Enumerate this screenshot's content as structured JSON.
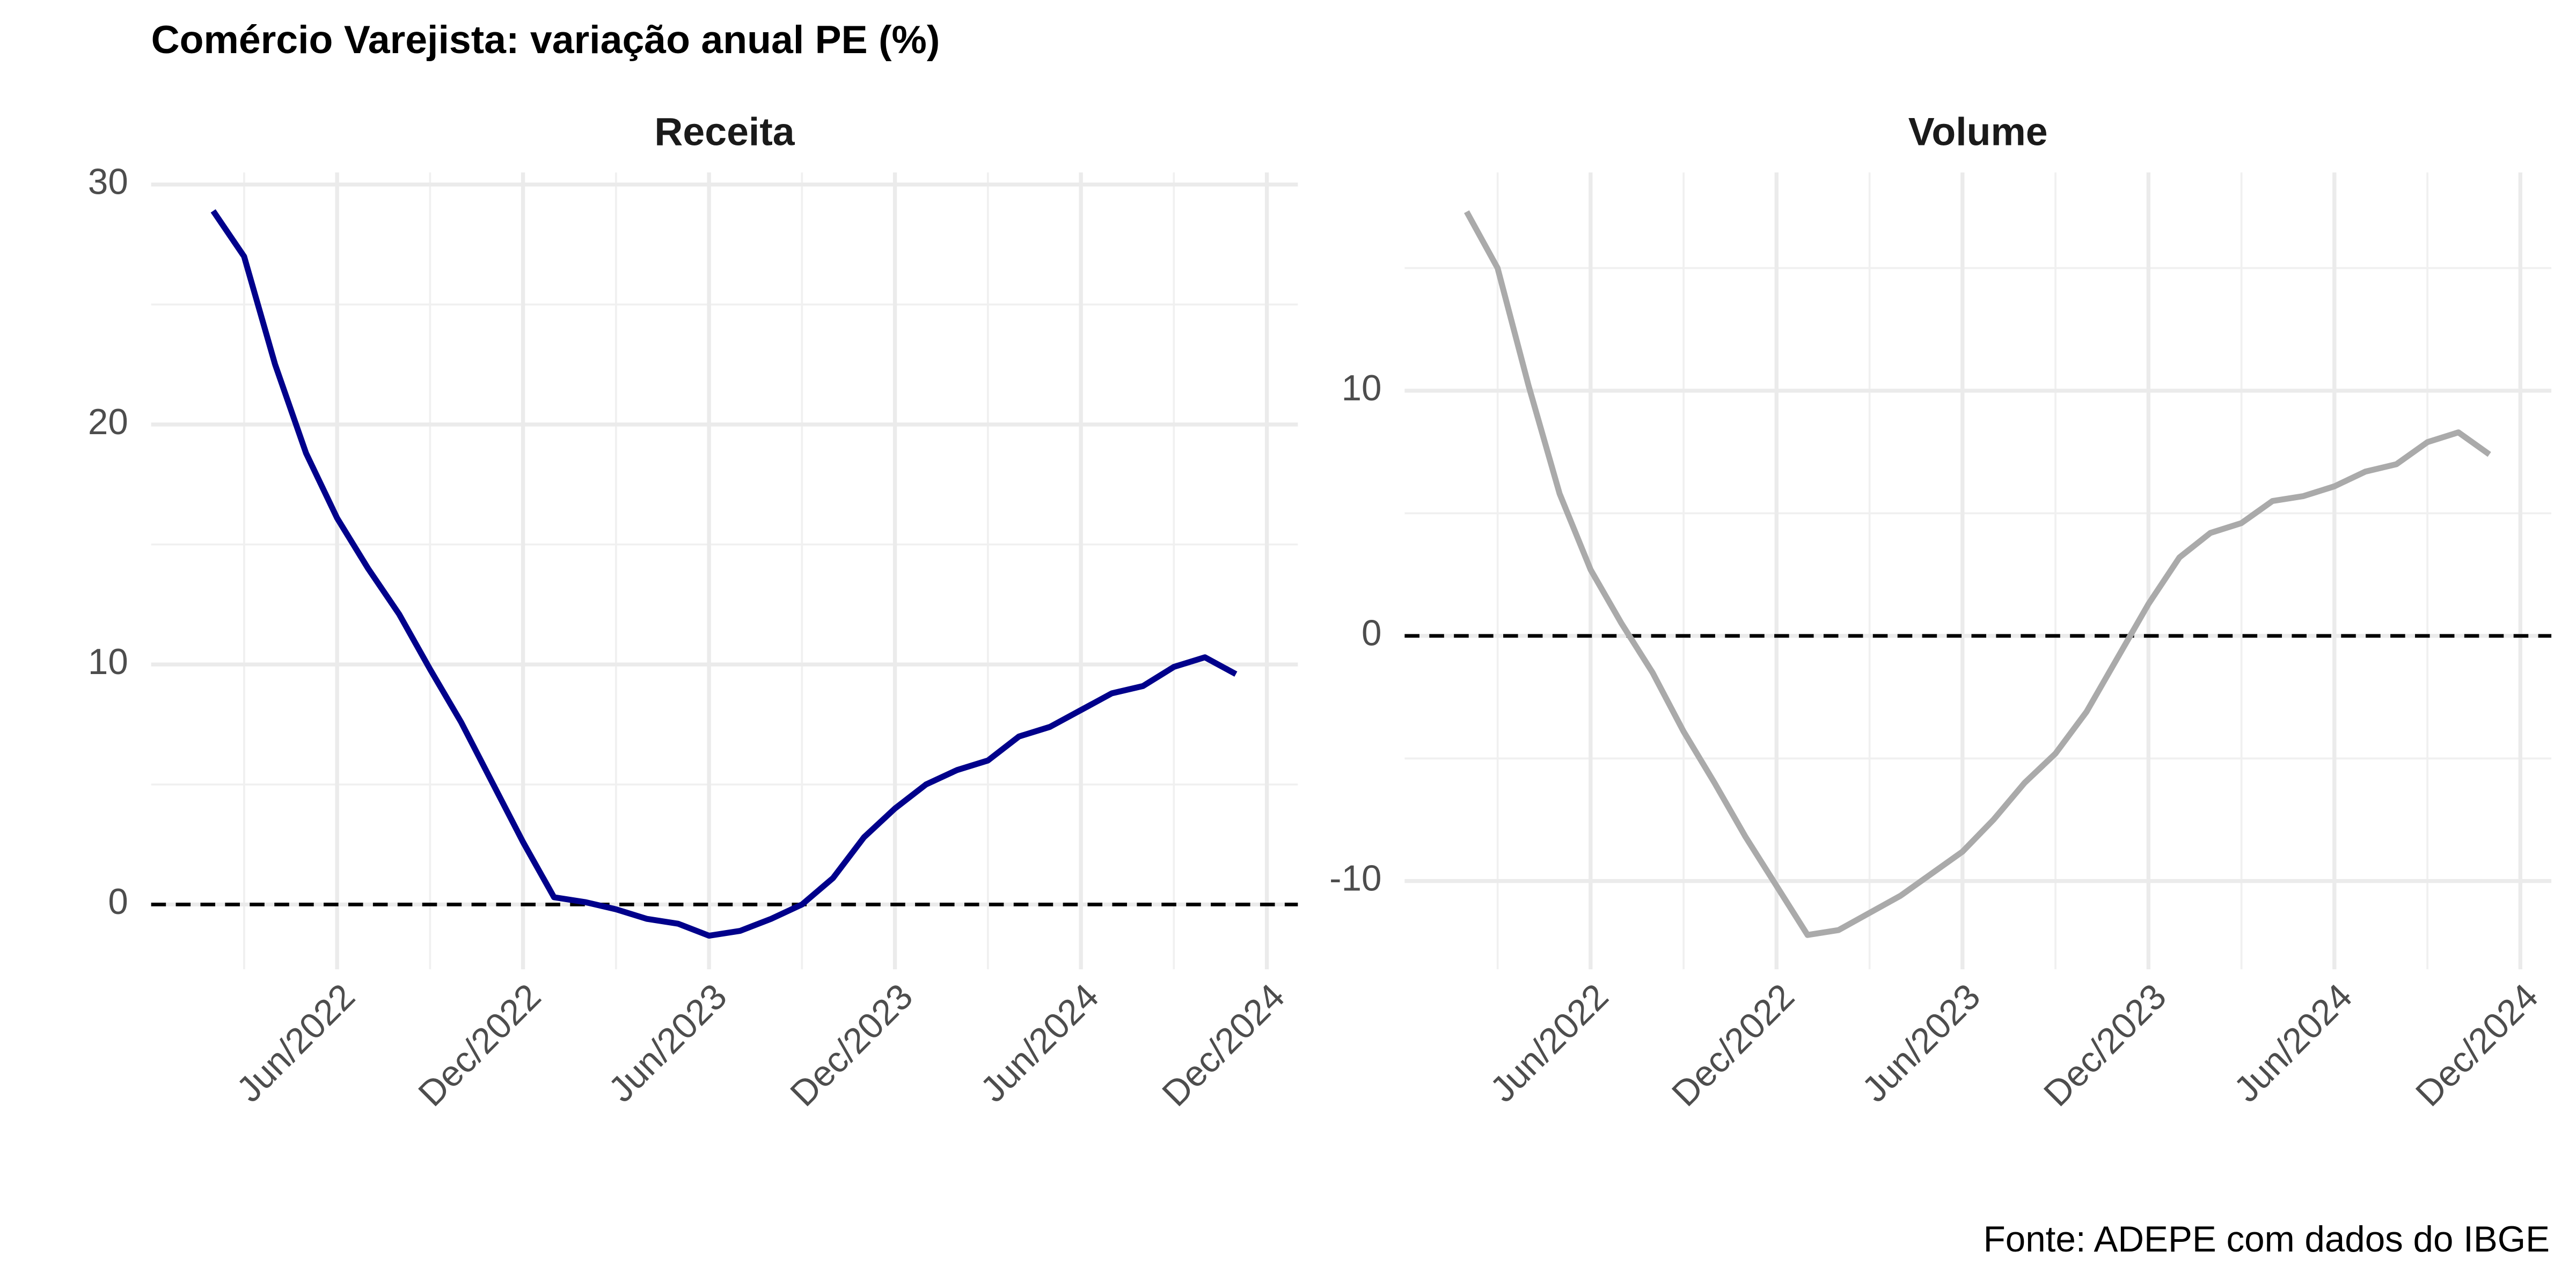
{
  "title": "Comércio Varejista: variação anual PE (%)",
  "caption": "Fonte: ADEPE com dados do IBGE",
  "chart_data": [
    {
      "type": "line",
      "title": "Receita",
      "color": "#00008b",
      "x": [
        "2022-02",
        "2022-03",
        "2022-04",
        "2022-05",
        "2022-06",
        "2022-07",
        "2022-08",
        "2022-09",
        "2022-10",
        "2022-11",
        "2022-12",
        "2023-01",
        "2023-02",
        "2023-03",
        "2023-04",
        "2023-05",
        "2023-06",
        "2023-07",
        "2023-08",
        "2023-09",
        "2023-10",
        "2023-11",
        "2023-12",
        "2024-01",
        "2024-02",
        "2024-03",
        "2024-04",
        "2024-05",
        "2024-06",
        "2024-07",
        "2024-08",
        "2024-09",
        "2024-10",
        "2024-11"
      ],
      "values": [
        28.9,
        27.0,
        22.5,
        18.8,
        16.1,
        14.0,
        12.1,
        9.8,
        7.6,
        5.1,
        2.6,
        0.3,
        0.1,
        -0.2,
        -0.6,
        -0.8,
        -1.3,
        -1.1,
        -0.6,
        0.0,
        1.1,
        2.8,
        4.0,
        5.0,
        5.6,
        6.0,
        7.0,
        7.4,
        8.1,
        8.8,
        9.1,
        9.9,
        10.3,
        9.6
      ],
      "xlim": [
        "2021-12",
        "2025-01"
      ],
      "ylim": [
        -2.7,
        30.5
      ],
      "xticks": [
        {
          "value": "2022-06",
          "label": "Jun/2022"
        },
        {
          "value": "2022-12",
          "label": "Dec/2022"
        },
        {
          "value": "2023-06",
          "label": "Jun/2023"
        },
        {
          "value": "2023-12",
          "label": "Dec/2023"
        },
        {
          "value": "2024-06",
          "label": "Jun/2024"
        },
        {
          "value": "2024-12",
          "label": "Dec/2024"
        }
      ],
      "minor_xticks": [
        "2022-03",
        "2022-09",
        "2023-03",
        "2023-09",
        "2024-03",
        "2024-09"
      ],
      "yticks": [
        0,
        10,
        20,
        30
      ],
      "minor_yticks": [
        5,
        15,
        25
      ],
      "reference_line": 0,
      "grid": true
    },
    {
      "type": "line",
      "title": "Volume",
      "color": "#aaaaaa",
      "x": [
        "2022-02",
        "2022-03",
        "2022-04",
        "2022-05",
        "2022-06",
        "2022-07",
        "2022-08",
        "2022-09",
        "2022-10",
        "2022-11",
        "2022-12",
        "2023-01",
        "2023-02",
        "2023-03",
        "2023-04",
        "2023-05",
        "2023-06",
        "2023-07",
        "2023-08",
        "2023-09",
        "2023-10",
        "2023-11",
        "2023-12",
        "2024-01",
        "2024-02",
        "2024-03",
        "2024-04",
        "2024-05",
        "2024-06",
        "2024-07",
        "2024-08",
        "2024-09",
        "2024-10",
        "2024-11"
      ],
      "values": [
        17.3,
        15.0,
        10.2,
        5.8,
        2.7,
        0.5,
        -1.5,
        -3.9,
        -6.0,
        -8.2,
        -10.2,
        -12.2,
        -12.0,
        -11.3,
        -10.6,
        -9.7,
        -8.8,
        -7.5,
        -6.0,
        -4.8,
        -3.1,
        -0.9,
        1.3,
        3.2,
        4.2,
        4.6,
        5.5,
        5.7,
        6.1,
        6.7,
        7.0,
        7.9,
        8.3,
        7.4
      ],
      "xlim": [
        "2021-12",
        "2025-01"
      ],
      "ylim": [
        -13.6,
        18.9
      ],
      "xticks": [
        {
          "value": "2022-06",
          "label": "Jun/2022"
        },
        {
          "value": "2022-12",
          "label": "Dec/2022"
        },
        {
          "value": "2023-06",
          "label": "Jun/2023"
        },
        {
          "value": "2023-12",
          "label": "Dec/2023"
        },
        {
          "value": "2024-06",
          "label": "Jun/2024"
        },
        {
          "value": "2024-12",
          "label": "Dec/2024"
        }
      ],
      "minor_xticks": [
        "2022-03",
        "2022-09",
        "2023-03",
        "2023-09",
        "2024-03",
        "2024-09"
      ],
      "yticks": [
        -10,
        0,
        10
      ],
      "minor_yticks": [
        -5,
        5,
        15
      ],
      "reference_line": 0,
      "grid": true
    }
  ]
}
